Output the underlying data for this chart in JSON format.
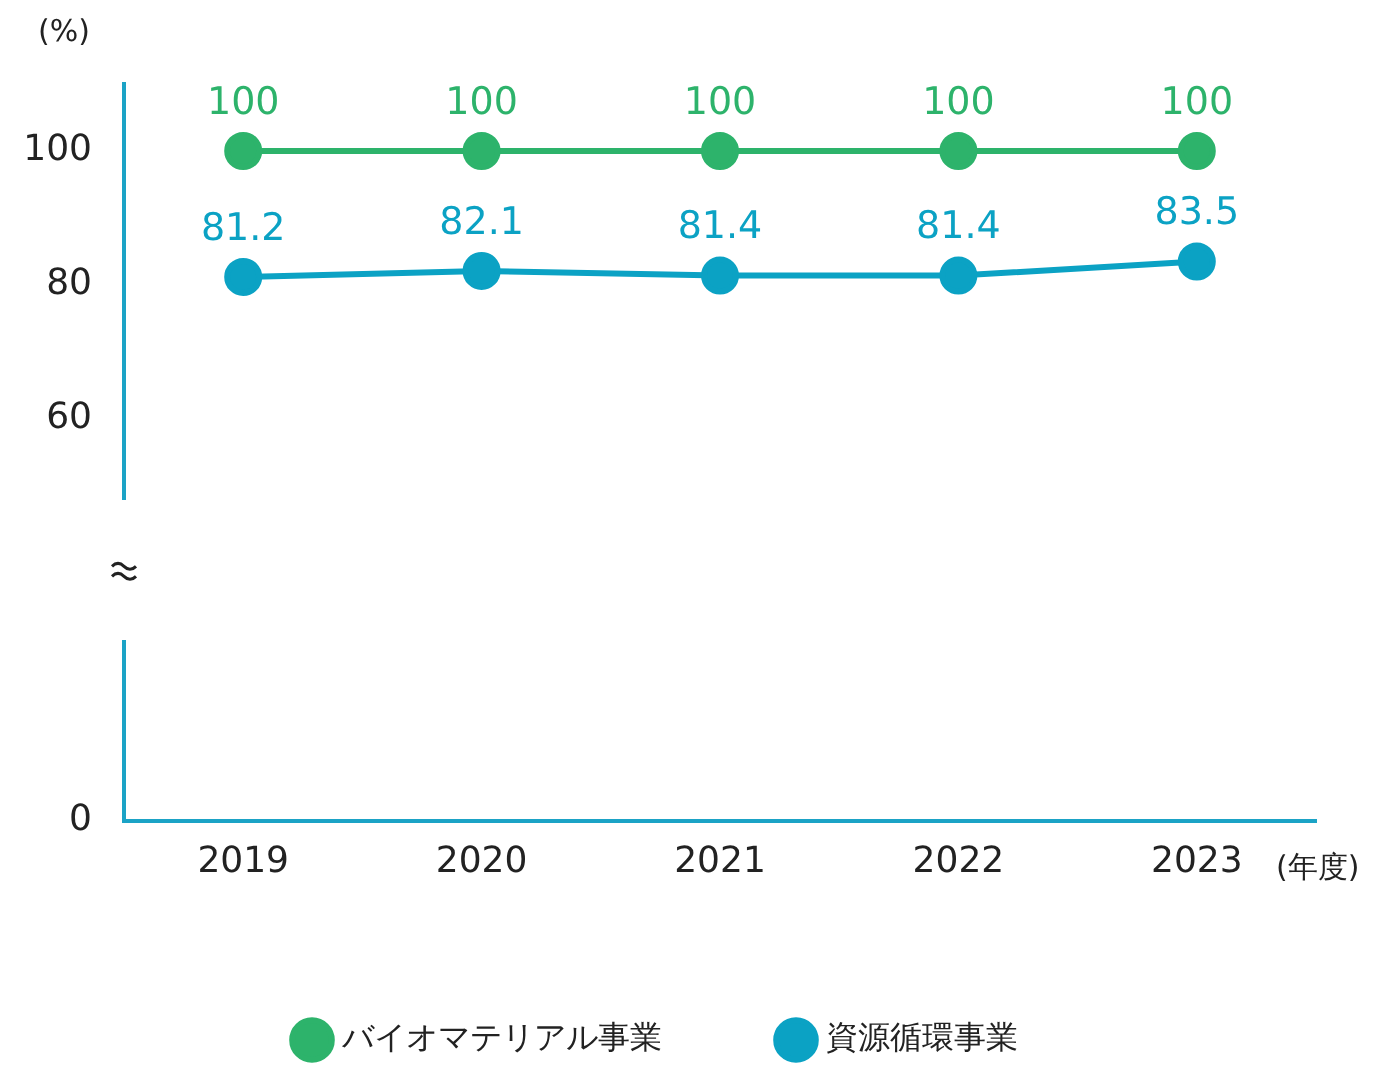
{
  "chart_data": {
    "type": "line",
    "ylabel": "(%)",
    "xlabel": "(年度)",
    "categories": [
      "2019",
      "2020",
      "2021",
      "2022",
      "2023"
    ],
    "series": [
      {
        "name": "バイオマテリアル事業",
        "color": "#2db36b",
        "values": [
          100,
          100,
          100,
          100,
          100
        ]
      },
      {
        "name": "資源循環事業",
        "color": "#0ba2c4",
        "values": [
          81.2,
          82.1,
          81.4,
          81.4,
          83.5
        ]
      }
    ],
    "ylim": [
      0,
      110
    ],
    "yticks": [
      0,
      60,
      80,
      100
    ],
    "grid": false,
    "legend": "bottom",
    "marker": "circle",
    "line_style": "solid",
    "data_labels": true
  }
}
